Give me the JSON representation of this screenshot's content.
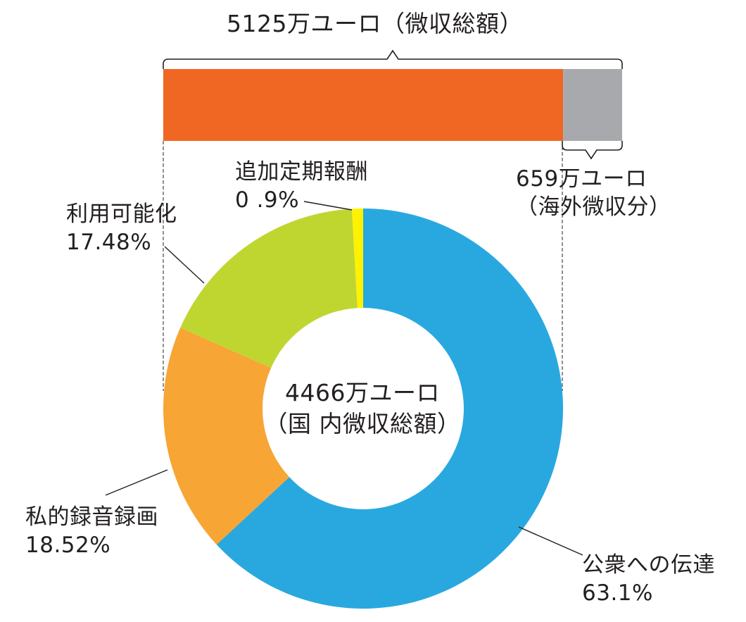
{
  "chart_data": [
    {
      "type": "bar",
      "orientation": "horizontal-stacked",
      "title": "5125万ユーロ（微収総額）",
      "series": [
        {
          "value_label": "4466万ユーロ",
          "value": 4466,
          "color": "#ef6723"
        },
        {
          "value_label": "659万ユーロ",
          "value": 659,
          "color": "#a7a9ac"
        }
      ],
      "annotations": {
        "overseas_value": "659万ユーロ",
        "overseas_name": "（海外微収分）"
      }
    },
    {
      "type": "pie",
      "style": "donut",
      "center_value": "4466万ユーロ",
      "center_caption": "（国 内微収総額）",
      "slices": [
        {
          "name": "公衆への伝達",
          "value": 63.1,
          "label": "63.1%",
          "color": "#29a8e0"
        },
        {
          "name": "私的録音録画",
          "value": 18.52,
          "label": "18.52%",
          "color": "#f7a535"
        },
        {
          "name": "利用可能化",
          "value": 17.48,
          "label": "17.48%",
          "color": "#c0d630"
        },
        {
          "name": "追加定期報酬",
          "value": 0.9,
          "label": "0 .9%",
          "color": "#fff200"
        }
      ]
    }
  ],
  "colors": {
    "text": "#231f20",
    "line": "#231f20"
  }
}
